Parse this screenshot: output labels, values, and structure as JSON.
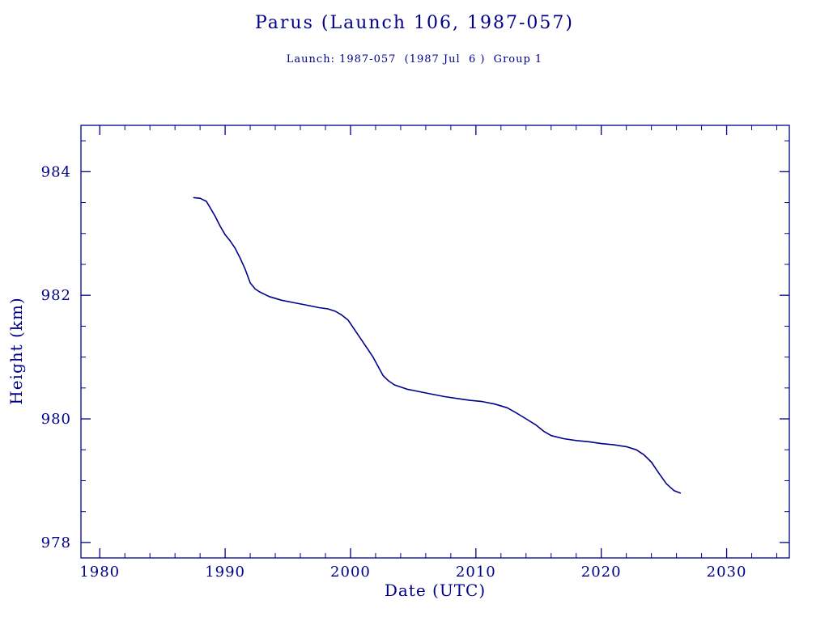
{
  "page": {
    "background_color": "#ffffff",
    "accent_color": "#00008b"
  },
  "header": {
    "title": "Parus (Launch 106, 1987-057)",
    "subtitle": "Launch: 1987-057  (1987 Jul  6 )  Group 1"
  },
  "chart_data": {
    "type": "line",
    "title": "Parus (Launch 106, 1987-057)",
    "subtitle": "Launch: 1987-057  (1987 Jul  6 )  Group 1",
    "xlabel": "Date (UTC)",
    "ylabel": "Height (km)",
    "xlim": [
      1978.5,
      2035
    ],
    "ylim": [
      977.75,
      984.75
    ],
    "xticks": [
      1980,
      1990,
      2000,
      2010,
      2020,
      2030
    ],
    "yticks": [
      978,
      980,
      982,
      984
    ],
    "x_minor_step": 2,
    "y_minor_step": 0.5,
    "grid": false,
    "legend": "none",
    "line_color": "#00008b",
    "series": [
      {
        "name": "height",
        "x": [
          1987.5,
          1988.0,
          1988.5,
          1988.8,
          1989.2,
          1989.6,
          1990.0,
          1990.4,
          1990.8,
          1991.2,
          1991.6,
          1992.0,
          1992.4,
          1992.8,
          1993.5,
          1994.5,
          1995.5,
          1996.5,
          1997.5,
          1998.2,
          1998.8,
          1999.3,
          1999.8,
          2000.3,
          2000.8,
          2001.3,
          2001.8,
          2002.2,
          2002.6,
          2003.0,
          2003.5,
          2004.5,
          2005.5,
          2006.5,
          2007.5,
          2008.5,
          2009.5,
          2010.5,
          2011.5,
          2012.5,
          2013.2,
          2014.0,
          2014.8,
          2015.4,
          2016.0,
          2017.0,
          2018.0,
          2019.0,
          2020.0,
          2021.0,
          2022.0,
          2022.8,
          2023.4,
          2024.0,
          2024.6,
          2025.2,
          2025.8,
          2026.3
        ],
        "y": [
          983.58,
          983.57,
          983.52,
          983.42,
          983.28,
          983.12,
          982.98,
          982.88,
          982.76,
          982.6,
          982.42,
          982.2,
          982.1,
          982.05,
          981.98,
          981.92,
          981.88,
          981.84,
          981.8,
          981.78,
          981.74,
          981.68,
          981.6,
          981.45,
          981.3,
          981.15,
          981.0,
          980.85,
          980.7,
          980.62,
          980.55,
          980.48,
          980.44,
          980.4,
          980.36,
          980.33,
          980.3,
          980.28,
          980.24,
          980.18,
          980.1,
          980.0,
          979.9,
          979.8,
          979.73,
          979.68,
          979.65,
          979.63,
          979.6,
          979.58,
          979.55,
          979.5,
          979.42,
          979.3,
          979.12,
          978.95,
          978.84,
          978.8
        ]
      }
    ]
  }
}
